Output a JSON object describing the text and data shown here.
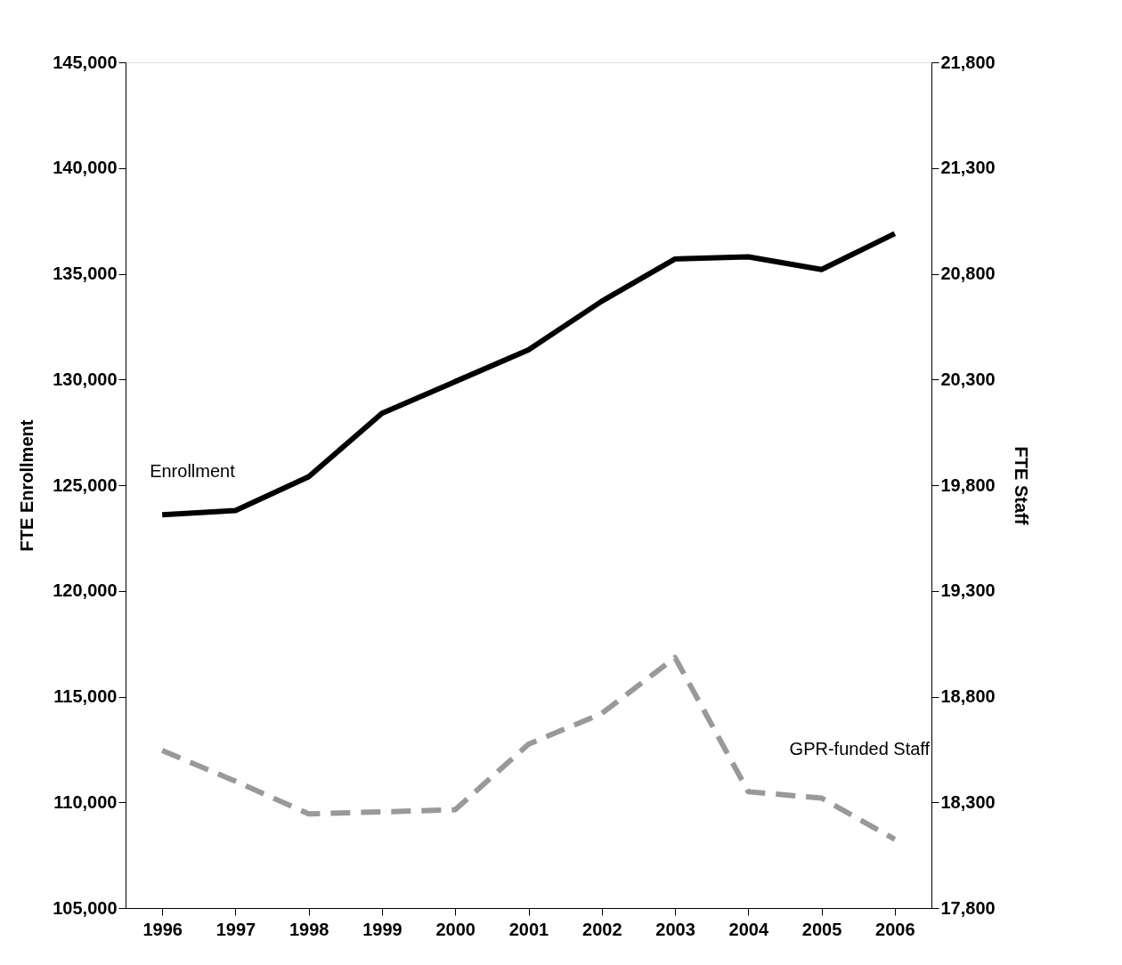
{
  "chart_data": {
    "type": "line",
    "ylabel": "FTE Enrollment",
    "y2label": "FTE Staff",
    "categories": [
      "1996",
      "1997",
      "1998",
      "1999",
      "2000",
      "2001",
      "2002",
      "2003",
      "2004",
      "2005",
      "2006"
    ],
    "series": [
      {
        "name": "Enrollment",
        "color": "#000000",
        "line_style": "solid",
        "values": [
          123600,
          123800,
          125400,
          128400,
          129900,
          131400,
          133700,
          135700,
          135800,
          135200,
          136900
        ]
      },
      {
        "name": "GPR-funded Staff",
        "color": "#999999",
        "line_style": "dashed",
        "axis": "y2",
        "values": [
          18545,
          18400,
          18245,
          18255,
          18265,
          18575,
          18720,
          18985,
          18350,
          18320,
          18125
        ]
      }
    ],
    "ylim": [
      105000,
      145000
    ],
    "yticks": [
      {
        "value": 105000,
        "label": "105,000"
      },
      {
        "value": 110000,
        "label": "110,000"
      },
      {
        "value": 115000,
        "label": "115,000"
      },
      {
        "value": 120000,
        "label": "120,000"
      },
      {
        "value": 125000,
        "label": "125,000"
      },
      {
        "value": 130000,
        "label": "130,000"
      },
      {
        "value": 135000,
        "label": "135,000"
      },
      {
        "value": 140000,
        "label": "140,000"
      },
      {
        "value": 145000,
        "label": "145,000"
      }
    ],
    "y2lim": [
      17800,
      21800
    ],
    "y2ticks": [
      {
        "value": 17800,
        "label": "17,800"
      },
      {
        "value": 18300,
        "label": "18,300"
      },
      {
        "value": 18800,
        "label": "18,800"
      },
      {
        "value": 19300,
        "label": "19,300"
      },
      {
        "value": 19800,
        "label": "19,800"
      },
      {
        "value": 20300,
        "label": "20,300"
      },
      {
        "value": 20800,
        "label": "20,800"
      },
      {
        "value": 21300,
        "label": "21,300"
      },
      {
        "value": 21800,
        "label": "21,800"
      }
    ],
    "grid": false,
    "legend": false,
    "marker": "none"
  }
}
